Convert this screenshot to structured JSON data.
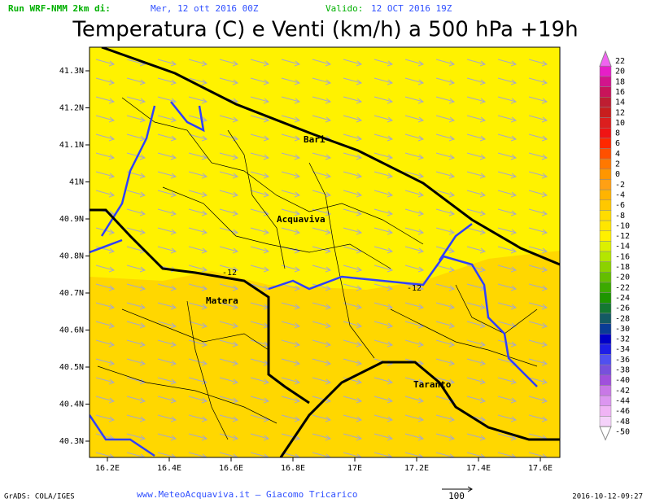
{
  "header": {
    "run_label": "Run WRF-NMM 2km di:",
    "run_date": "Mer, 12 ott 2016 00Z",
    "valid_label": "Valido:",
    "valid_date": "12 OCT 2016 19Z",
    "title": "Temperatura (C) e Venti (km/h) a 500 hPa +19h"
  },
  "map": {
    "lat_ticks": [
      {
        "value": 41.3,
        "label": "41.3N"
      },
      {
        "value": 41.2,
        "label": "41.2N"
      },
      {
        "value": 41.1,
        "label": "41.1N"
      },
      {
        "value": 41,
        "label": "41N"
      },
      {
        "value": 40.9,
        "label": "40.9N"
      },
      {
        "value": 40.8,
        "label": "40.8N"
      },
      {
        "value": 40.7,
        "label": "40.7N"
      },
      {
        "value": 40.6,
        "label": "40.6N"
      },
      {
        "value": 40.5,
        "label": "40.5N"
      },
      {
        "value": 40.4,
        "label": "40.4N"
      },
      {
        "value": 40.3,
        "label": "40.3N"
      }
    ],
    "lon_ticks": [
      {
        "value": 16.2,
        "label": "16.2E"
      },
      {
        "value": 16.4,
        "label": "16.4E"
      },
      {
        "value": 16.6,
        "label": "16.6E"
      },
      {
        "value": 16.8,
        "label": "16.8E"
      },
      {
        "value": 17,
        "label": "17E"
      },
      {
        "value": 17.2,
        "label": "17.2E"
      },
      {
        "value": 17.4,
        "label": "17.4E"
      },
      {
        "value": 17.6,
        "label": "17.6E"
      }
    ],
    "places": [
      "Bari",
      "Acquaviva",
      "Matera",
      "Taranto"
    ],
    "contour_labels": [
      "-12",
      "-12"
    ]
  },
  "colorbar": {
    "levels": [
      22,
      20,
      18,
      16,
      14,
      12,
      10,
      8,
      6,
      4,
      2,
      0,
      -2,
      -4,
      -6,
      -8,
      -10,
      -12,
      -14,
      -16,
      -18,
      -20,
      -22,
      -24,
      -26,
      -28,
      -30,
      -32,
      -34,
      -36,
      -38,
      -40,
      -42,
      -44,
      -46,
      -48,
      -50
    ],
    "colors": [
      "#f064f0",
      "#e61ec8",
      "#d2148c",
      "#c8145a",
      "#be1e32",
      "#c81e1e",
      "#dc1e1e",
      "#f01414",
      "#ff2800",
      "#ff5000",
      "#ff7800",
      "#ff9600",
      "#ffa014",
      "#ffb400",
      "#ffc800",
      "#ffdc00",
      "#ffe600",
      "#fff000",
      "#dcf000",
      "#b4e600",
      "#8cd200",
      "#64be00",
      "#3caa00",
      "#1e9600",
      "#147832",
      "#145a64",
      "#0a3c96",
      "#0000c8",
      "#1e1ee6",
      "#5050f0",
      "#7850dc",
      "#a050dc",
      "#c878e6",
      "#dc96f0",
      "#f0b4f5",
      "#f5d2fa",
      "#ffffff"
    ]
  },
  "footer": {
    "credit": "GrADS: COLA/IGES",
    "site": "www.MeteoAcquaviva.it – Giacomo Tricarico",
    "vector_scale": "100",
    "timestamp": "2016-10-12-09:27"
  }
}
